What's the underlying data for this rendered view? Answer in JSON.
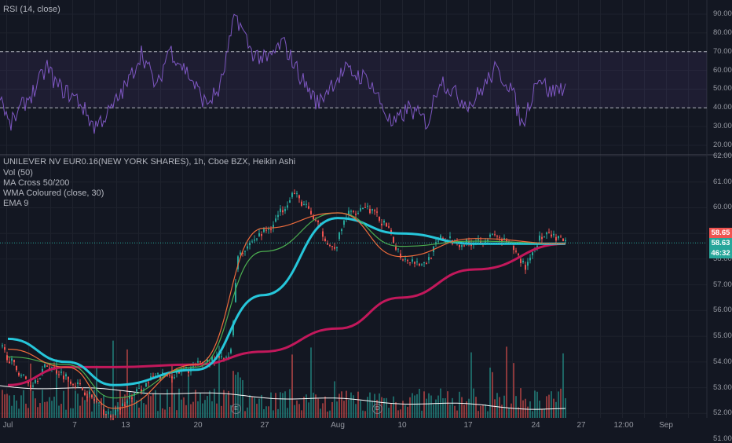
{
  "rsi_pane": {
    "legend": "RSI (14, close)",
    "y_ticks": [
      "90.00",
      "80.00",
      "70.00",
      "60.00",
      "50.00",
      "40.00",
      "30.00",
      "20.00"
    ],
    "band": [
      40,
      70
    ]
  },
  "price_pane": {
    "legend": [
      "UNILEVER NV EUR0.16(NEW YORK SHARES), 1h, Cboe BZX, Heikin Ashi",
      "Vol (50)",
      "MA Cross 50/200",
      "WMA Coloured (close, 30)",
      "EMA 9"
    ],
    "y_ticks": [
      "62.00",
      "61.00",
      "60.00",
      "59.00",
      "58.00",
      "57.00",
      "56.00",
      "55.00",
      "54.00",
      "53.00",
      "52.00",
      "51.00"
    ],
    "price_tags": [
      {
        "label": "58.65",
        "color": "#ef5350"
      },
      {
        "label": "58.63",
        "color": "#26a69a"
      },
      {
        "label": "46:32",
        "color": "#26a69a"
      }
    ],
    "event_markers": [
      {
        "label": "E"
      },
      {
        "label": "D"
      }
    ]
  },
  "x_axis": [
    "Jul",
    "7",
    "13",
    "20",
    "27",
    "Aug",
    "10",
    "17",
    "24",
    "27",
    "12:00",
    "Sep"
  ],
  "colors": {
    "up": "#26a69a",
    "down": "#ef5350",
    "ma50": "#26c6da",
    "ma200": "#c2185b",
    "ema9": "#ef6c3c",
    "wma": "#4caf50",
    "rsi": "#7e57c2",
    "vol_avg": "#ffffff"
  },
  "chart_data": {
    "type": "line",
    "title": "UNILEVER NV EUR0.16(NEW YORK SHARES), 1h, Cboe BZX, Heikin Ashi",
    "x": [
      "Jul",
      "7",
      "13",
      "20",
      "27",
      "Aug",
      "10",
      "17",
      "24"
    ],
    "ylim": [
      50.8,
      62.0
    ],
    "series": [
      {
        "name": "MA Cross 50/200",
        "values": [
          54.9,
          54.0,
          53.1,
          53.7,
          56.6,
          59.6,
          59.0,
          58.6,
          58.6
        ]
      },
      {
        "name": "MA Cross 50/200",
        "values": [
          53.1,
          53.8,
          53.8,
          53.9,
          54.4,
          55.3,
          56.5,
          57.6,
          58.6
        ]
      },
      {
        "name": "EMA 9",
        "values": [
          54.5,
          53.8,
          52.2,
          53.9,
          59.2,
          59.8,
          58.1,
          58.8,
          58.6
        ]
      },
      {
        "name": "WMA Coloured (close, 30)",
        "values": [
          54.2,
          53.9,
          52.6,
          53.8,
          58.3,
          59.8,
          58.5,
          58.7,
          58.6
        ]
      }
    ],
    "rsi": {
      "name": "RSI (14, close)",
      "ylim": [
        15,
        95
      ],
      "x": [
        "Jul",
        "7",
        "13",
        "20",
        "27",
        "Aug",
        "10",
        "17",
        "24"
      ],
      "values": [
        45,
        42,
        55,
        38,
        60,
        52,
        38,
        45,
        50
      ]
    }
  }
}
